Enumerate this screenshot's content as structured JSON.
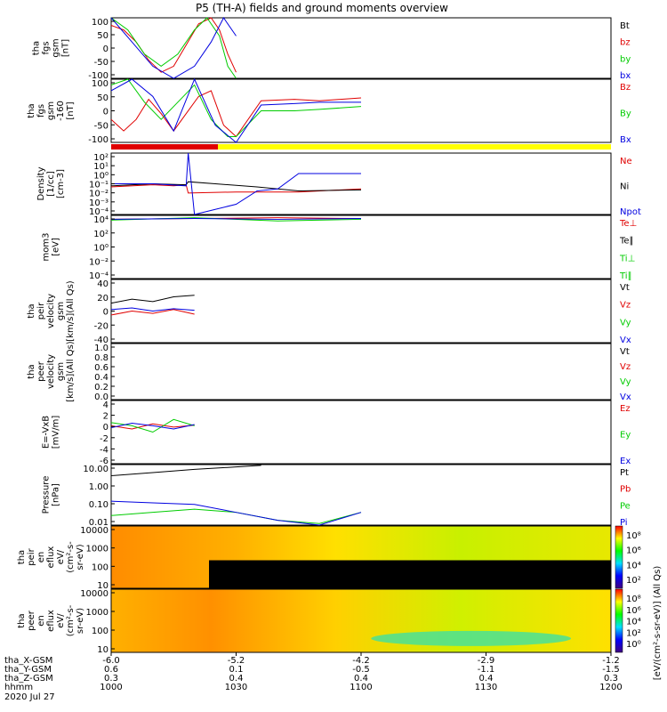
{
  "title": "P5 (TH-A) fields and ground moments overview",
  "colors": {
    "black": "#000000",
    "red": "#e00000",
    "green": "#00cc00",
    "blue": "#0000e0",
    "yellow": "#ffff00"
  },
  "chart_data": [
    {
      "type": "line",
      "id": "fgs",
      "ylabel_lines": [
        "tha",
        "fgs",
        "gsm",
        "[nT]"
      ],
      "ylim": [
        -100,
        100
      ],
      "yticks": [
        "100",
        "50",
        "0",
        "-50",
        "-100"
      ],
      "legend": [
        {
          "name": "Bt",
          "color": "black"
        },
        {
          "name": "bz",
          "color": "red"
        },
        {
          "name": "by",
          "color": "green"
        },
        {
          "name": "bx",
          "color": "blue"
        }
      ],
      "series": [
        {
          "name": "bz",
          "color": "red",
          "x": [
            0,
            3,
            6,
            9,
            12,
            15,
            18,
            21,
            24,
            26,
            28,
            30
          ],
          "y": [
            75,
            60,
            20,
            -40,
            -80,
            -60,
            10,
            80,
            100,
            60,
            -20,
            -80
          ]
        },
        {
          "name": "by",
          "color": "green",
          "x": [
            0,
            4,
            8,
            12,
            16,
            20,
            23,
            26,
            28,
            30
          ],
          "y": [
            100,
            60,
            -20,
            -60,
            -20,
            60,
            100,
            40,
            -60,
            -100
          ]
        },
        {
          "name": "bx",
          "color": "blue",
          "x": [
            0,
            5,
            10,
            15,
            20,
            24,
            27,
            30
          ],
          "y": [
            100,
            20,
            -60,
            -100,
            -60,
            20,
            100,
            40
          ]
        }
      ]
    },
    {
      "type": "line",
      "id": "fgs_zoom",
      "ylabel_lines": [
        "tha",
        "fgs",
        "gsm",
        "-160",
        "[nT]"
      ],
      "ylim": [
        -120,
        100
      ],
      "yticks": [
        "100",
        "50",
        "0",
        "-50",
        "-100"
      ],
      "legend": [
        {
          "name": "Bz",
          "color": "red"
        },
        {
          "name": "By",
          "color": "green"
        },
        {
          "name": "Bx",
          "color": "blue"
        }
      ],
      "series": [
        {
          "name": "Bz",
          "color": "red",
          "x": [
            0,
            3,
            6,
            9,
            12,
            15,
            18,
            21,
            24,
            27,
            30,
            36,
            44,
            50,
            60
          ],
          "y": [
            -40,
            -80,
            -40,
            30,
            -20,
            -80,
            -20,
            40,
            60,
            -60,
            -100,
            25,
            30,
            25,
            35
          ]
        },
        {
          "name": "By",
          "color": "green",
          "x": [
            0,
            4,
            8,
            12,
            16,
            20,
            24,
            28,
            30,
            36,
            44,
            50,
            60
          ],
          "y": [
            80,
            100,
            20,
            -40,
            20,
            80,
            -40,
            -100,
            -100,
            -10,
            -10,
            -5,
            5
          ]
        },
        {
          "name": "Bx",
          "color": "blue",
          "x": [
            0,
            5,
            10,
            15,
            20,
            25,
            30,
            36,
            44,
            50,
            60
          ],
          "y": [
            60,
            100,
            40,
            -80,
            100,
            -60,
            -120,
            10,
            15,
            20,
            20
          ]
        }
      ]
    },
    {
      "type": "line",
      "id": "density",
      "ylabel_lines": [
        "Density",
        "[1/cc]",
        "[cm-3]"
      ],
      "yscale": "log",
      "ylim": [
        -4,
        2
      ],
      "yticks": [
        "10²",
        "10¹",
        "10⁰",
        "10⁻¹",
        "10⁻²",
        "10⁻³",
        "10⁻⁴"
      ],
      "legend": [
        {
          "name": "Ne",
          "color": "red"
        },
        {
          "name": "Ni",
          "color": "black"
        },
        {
          "name": "Npot",
          "color": "blue"
        }
      ],
      "series": [
        {
          "name": "Ne",
          "color": "red",
          "x": [
            0,
            10,
            15,
            18,
            18.5,
            30,
            45,
            60
          ],
          "y": [
            -1.3,
            -1.1,
            -1.2,
            -1.1,
            -1.9,
            -1.8,
            -1.8,
            -1.5
          ]
        },
        {
          "name": "Ni",
          "color": "black",
          "x": [
            0,
            10,
            18,
            18.5,
            25,
            35,
            45,
            60
          ],
          "y": [
            -1.2,
            -1.0,
            -1.1,
            -0.8,
            -1,
            -1.3,
            -1.7,
            -1.6
          ]
        },
        {
          "name": "Npot",
          "color": "blue",
          "x": [
            0,
            10,
            18,
            18.5,
            20,
            25,
            30,
            35,
            40,
            45,
            60
          ],
          "y": [
            -1,
            -1,
            -1.2,
            2,
            -4,
            -3.5,
            -3,
            -1.7,
            -1.5,
            0,
            0
          ]
        }
      ]
    },
    {
      "type": "line",
      "id": "temperature",
      "ylabel_lines": [
        "mom3",
        "[eV]"
      ],
      "yscale": "log",
      "ylim": [
        -4,
        4
      ],
      "yticks": [
        "10⁴",
        "10²",
        "10⁰",
        "10⁻²",
        "10⁻⁴"
      ],
      "legend": [
        {
          "name": "Te⊥",
          "color": "red"
        },
        {
          "name": "Te∥",
          "color": "black"
        },
        {
          "name": "Ti⊥",
          "color": "green"
        },
        {
          "name": "Ti∥",
          "color": "green"
        }
      ],
      "series": [
        {
          "name": "Te⊥",
          "color": "red",
          "x": [
            0,
            20,
            40,
            60
          ],
          "y": [
            3.5,
            3.6,
            3.7,
            3.6
          ]
        },
        {
          "name": "Ti∥",
          "color": "green",
          "x": [
            0,
            20,
            40,
            60
          ],
          "y": [
            3.4,
            3.7,
            3.3,
            3.5
          ]
        },
        {
          "name": "Ti⊥",
          "color": "blue",
          "x": [
            0,
            20,
            40,
            60
          ],
          "y": [
            3.5,
            3.6,
            3.5,
            3.6
          ]
        }
      ]
    },
    {
      "type": "line",
      "id": "peir_velocity",
      "ylabel_lines": [
        "tha",
        "peir",
        "velocity",
        "gsm",
        "[km/s](All Qs)"
      ],
      "ylim": [
        -40,
        40
      ],
      "yticks": [
        "40",
        "20",
        "0",
        "-20",
        "-40"
      ],
      "legend": [
        {
          "name": "Vt",
          "color": "black"
        },
        {
          "name": "Vz",
          "color": "red"
        },
        {
          "name": "Vy",
          "color": "green"
        },
        {
          "name": "Vx",
          "color": "blue"
        }
      ],
      "series": [
        {
          "name": "Vt",
          "color": "black",
          "x": [
            0,
            5,
            10,
            15,
            20
          ],
          "y": [
            10,
            15,
            12,
            18,
            20
          ]
        },
        {
          "name": "Vz",
          "color": "red",
          "x": [
            0,
            5,
            10,
            15,
            20
          ],
          "y": [
            -5,
            0,
            -3,
            2,
            -4
          ]
        },
        {
          "name": "Vx",
          "color": "blue",
          "x": [
            0,
            5,
            10,
            15,
            20
          ],
          "y": [
            2,
            4,
            0,
            3,
            1
          ]
        }
      ]
    },
    {
      "type": "line",
      "id": "peer_velocity",
      "ylabel_lines": [
        "tha",
        "peer",
        "velocity",
        "gsm",
        "[km/s](All Qs)"
      ],
      "ylim": [
        0,
        1
      ],
      "yticks": [
        "1.0",
        "0.8",
        "0.6",
        "0.4",
        "0.2",
        "0.0"
      ],
      "legend": [
        {
          "name": "Vt",
          "color": "black"
        },
        {
          "name": "Vz",
          "color": "red"
        },
        {
          "name": "Vy",
          "color": "green"
        },
        {
          "name": "Vx",
          "color": "blue"
        }
      ],
      "series": []
    },
    {
      "type": "line",
      "id": "exb",
      "ylabel_lines": [
        "E=-VxB",
        "[mV/m]"
      ],
      "ylim": [
        -6,
        4
      ],
      "yticks": [
        "4",
        "2",
        "0",
        "-2",
        "-4",
        "-6"
      ],
      "legend": [
        {
          "name": "Ez",
          "color": "red"
        },
        {
          "name": "Ey",
          "color": "green"
        },
        {
          "name": "Ex",
          "color": "blue"
        }
      ],
      "series": [
        {
          "name": "Ez",
          "color": "red",
          "x": [
            0,
            5,
            10,
            15,
            20
          ],
          "y": [
            0,
            -0.5,
            0.3,
            -0.2,
            0.1
          ]
        },
        {
          "name": "Ey",
          "color": "green",
          "x": [
            0,
            5,
            10,
            15,
            20
          ],
          "y": [
            0.5,
            0,
            -1,
            1,
            0
          ]
        },
        {
          "name": "Ex",
          "color": "blue",
          "x": [
            0,
            5,
            10,
            15,
            20
          ],
          "y": [
            -0.3,
            0.4,
            0,
            -0.5,
            0.2
          ]
        }
      ]
    },
    {
      "type": "line",
      "id": "pressure",
      "ylabel_lines": [
        "Pressure",
        "[nPa]"
      ],
      "yscale": "log",
      "ylim": [
        -2.3,
        1.5
      ],
      "yticks": [
        "10.00",
        "1.00",
        "0.10",
        "0.01"
      ],
      "legend": [
        {
          "name": "Pt",
          "color": "black"
        },
        {
          "name": "Pb",
          "color": "red"
        },
        {
          "name": "Pe",
          "color": "green"
        },
        {
          "name": "Pi",
          "color": "blue"
        }
      ],
      "series": [
        {
          "name": "Pt",
          "color": "black",
          "x": [
            0,
            10,
            20,
            30,
            36
          ],
          "y": [
            0.8,
            1.0,
            1.2,
            1.35,
            1.45
          ]
        },
        {
          "name": "Pe",
          "color": "green",
          "x": [
            0,
            10,
            20,
            30,
            40,
            50,
            60
          ],
          "y": [
            -1.7,
            -1.5,
            -1.3,
            -1.5,
            -2.0,
            -2.2,
            -1.5
          ]
        },
        {
          "name": "Pi",
          "color": "blue",
          "x": [
            0,
            10,
            20,
            30,
            40,
            50,
            60
          ],
          "y": [
            -0.8,
            -0.9,
            -1.0,
            -1.5,
            -2.0,
            -2.3,
            -1.5
          ]
        }
      ]
    },
    {
      "type": "heatmap",
      "id": "peir_eflux",
      "ylabel_lines": [
        "tha",
        "peir",
        "en",
        "eflux",
        "eV/",
        "(cm²-s-",
        "sr-eV)"
      ],
      "yscale": "log",
      "yticks": [
        "10000",
        "1000",
        "100",
        "10"
      ],
      "colorbar_ticks": [
        "10⁸",
        "10⁶",
        "10⁴",
        "10²"
      ]
    },
    {
      "type": "heatmap",
      "id": "peer_eflux",
      "ylabel_lines": [
        "tha",
        "peer",
        "en",
        "eflux",
        "eV/",
        "(cm²-s-",
        "sr-eV)"
      ],
      "yscale": "log",
      "yticks": [
        "10000",
        "1000",
        "100",
        "10"
      ],
      "colorbar_ticks": [
        "10⁸",
        "10⁶",
        "10⁴",
        "10²",
        "10⁰"
      ]
    }
  ],
  "colorbar_label": "[eV/(cm²-s-sr-eV)] (All Qs)",
  "xaxis": {
    "ticks": [
      {
        "tha_X": "-6.0",
        "tha_Y": "0.6",
        "tha_Z": "0.3",
        "hhmm": "1000"
      },
      {
        "tha_X": "-5.2",
        "tha_Y": "0.1",
        "tha_Z": "0.4",
        "hhmm": "1030"
      },
      {
        "tha_X": "-4.2",
        "tha_Y": "-0.5",
        "tha_Z": "0.4",
        "hhmm": "1100"
      },
      {
        "tha_X": "-2.9",
        "tha_Y": "-1.1",
        "tha_Z": "0.4",
        "hhmm": "1130"
      },
      {
        "tha_X": "-1.2",
        "tha_Y": "-1.5",
        "tha_Z": "0.3",
        "hhmm": "1200"
      }
    ],
    "row_labels": [
      "tha_X-GSM",
      "tha_Y-GSM",
      "tha_Z-GSM",
      "hhmm"
    ],
    "date": "2020 Jul 27"
  }
}
